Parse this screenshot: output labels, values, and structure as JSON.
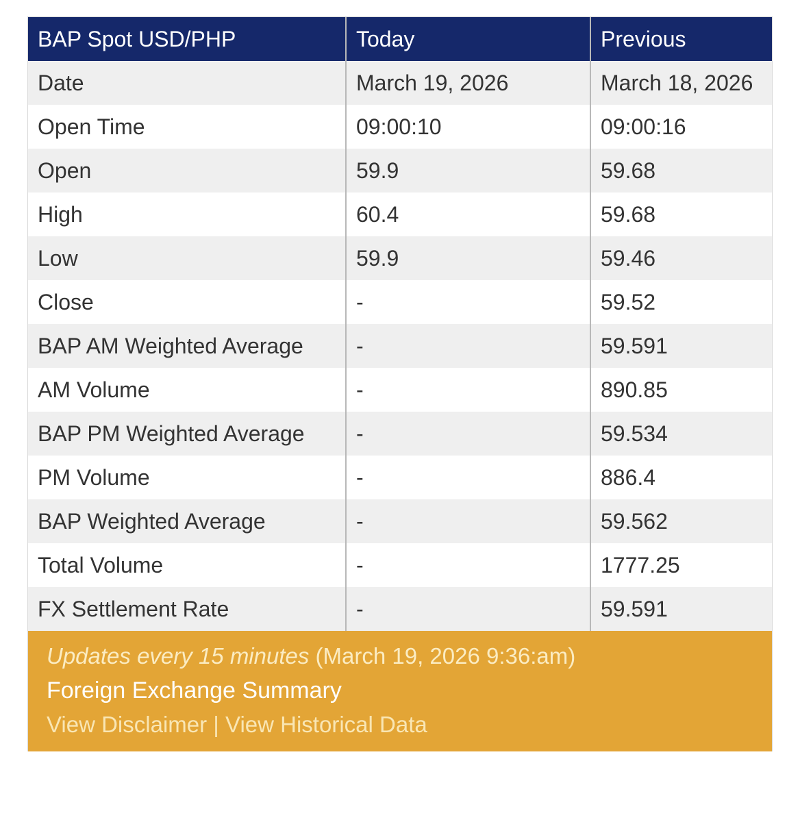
{
  "table": {
    "header": [
      "BAP Spot USD/PHP",
      "Today",
      "Previous"
    ],
    "rows": [
      [
        "Date",
        "March 19, 2026",
        "March 18, 2026"
      ],
      [
        "Open Time",
        "09:00:10",
        "09:00:16"
      ],
      [
        "Open",
        "59.9",
        "59.68"
      ],
      [
        "High",
        "60.4",
        "59.68"
      ],
      [
        "Low",
        "59.9",
        "59.46"
      ],
      [
        "Close",
        "-",
        "59.52"
      ],
      [
        "BAP AM Weighted Average",
        "-",
        "59.591"
      ],
      [
        "AM Volume",
        "-",
        "890.85"
      ],
      [
        "BAP PM Weighted Average",
        "-",
        "59.534"
      ],
      [
        "PM Volume",
        "-",
        "886.4"
      ],
      [
        "BAP Weighted Average",
        "-",
        "59.562"
      ],
      [
        "Total Volume",
        "-",
        "1777.25"
      ],
      [
        "FX Settlement Rate",
        "-",
        "59.591"
      ]
    ]
  },
  "footer": {
    "update_note": "Updates every 15 minutes",
    "timestamp": "(March 19, 2026 9:36:am)",
    "summary_link": "Foreign Exchange Summary",
    "disclaimer_link": "View Disclaimer",
    "separator": "|",
    "historical_link": "View Historical Data"
  }
}
